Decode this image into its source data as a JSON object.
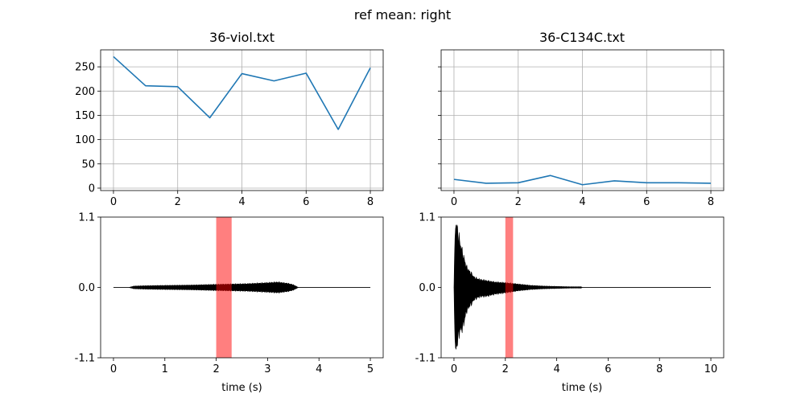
{
  "figure": {
    "suptitle": "ref mean: right"
  },
  "chart_data": [
    {
      "type": "line",
      "title": "36-viol.txt",
      "x": [
        0,
        1,
        2,
        3,
        4,
        5,
        6,
        7,
        8
      ],
      "values": [
        271,
        211,
        209,
        145,
        236,
        221,
        237,
        121,
        248
      ],
      "xlim": [
        -0.4,
        8.4
      ],
      "ylim": [
        -5,
        285
      ],
      "xticks": [
        0,
        2,
        4,
        6,
        8
      ],
      "yticks": [
        0,
        50,
        100,
        150,
        200,
        250
      ],
      "xtick_labels": [
        "0",
        "2",
        "4",
        "6",
        "8"
      ],
      "ytick_labels": [
        "0",
        "50",
        "100",
        "150",
        "200",
        "250"
      ],
      "grid": true,
      "color": "#1f77b4"
    },
    {
      "type": "line",
      "title": "36-C134C.txt",
      "x": [
        0,
        1,
        2,
        3,
        4,
        5,
        6,
        7,
        8
      ],
      "values": [
        18,
        10,
        11,
        26,
        7,
        15,
        11,
        11,
        10
      ],
      "xlim": [
        -0.4,
        8.4
      ],
      "ylim": [
        -5,
        285
      ],
      "xticks": [
        0,
        2,
        4,
        6,
        8
      ],
      "xtick_labels": [
        "0",
        "2",
        "4",
        "6",
        "8"
      ],
      "grid": true,
      "shared_y": true,
      "color": "#1f77b4"
    },
    {
      "type": "area",
      "xlabel": "time (s)",
      "xlim": [
        -0.25,
        5.25
      ],
      "ylim": [
        -1.1,
        1.1
      ],
      "xticks": [
        0,
        1,
        2,
        3,
        4,
        5
      ],
      "xtick_labels": [
        "0",
        "1",
        "2",
        "3",
        "4",
        "5"
      ],
      "yticks": [
        -1.1,
        0.0,
        1.1
      ],
      "ytick_labels": [
        "-1.1",
        "0.0",
        "1.1"
      ],
      "highlight": {
        "start": 2.0,
        "end": 2.3,
        "color": "#ff0000",
        "opacity": 0.5
      },
      "baseline": [
        0,
        5
      ],
      "envelope": {
        "t": [
          0,
          0.3,
          0.4,
          0.6,
          1.0,
          1.5,
          2.0,
          2.3,
          2.6,
          3.0,
          3.2,
          3.4,
          3.5,
          3.6,
          5.0
        ],
        "amp": [
          0.0,
          0.0,
          0.02,
          0.025,
          0.03,
          0.035,
          0.045,
          0.05,
          0.055,
          0.07,
          0.08,
          0.06,
          0.04,
          0.0,
          0.0
        ]
      },
      "color": "#000000"
    },
    {
      "type": "area",
      "xlabel": "time (s)",
      "xlim": [
        -0.5,
        10.5
      ],
      "ylim": [
        -1.1,
        1.1
      ],
      "xticks": [
        0,
        2,
        4,
        6,
        8,
        10
      ],
      "xtick_labels": [
        "0",
        "2",
        "4",
        "6",
        "8",
        "10"
      ],
      "yticks": [
        -1.1,
        0.0,
        1.1
      ],
      "ytick_labels": [
        "-1.1",
        "0.0",
        "1.1"
      ],
      "highlight": {
        "start": 2.0,
        "end": 2.3,
        "color": "#ff0000",
        "opacity": 0.5
      },
      "baseline": [
        0,
        10
      ],
      "envelope": {
        "t": [
          0,
          0.05,
          0.1,
          0.2,
          0.35,
          0.5,
          0.8,
          1.0,
          1.3,
          1.6,
          2.0,
          2.5,
          3.0,
          3.5,
          4.0,
          4.5,
          4.95,
          5.0,
          10.0
        ],
        "amp_pos": [
          0.0,
          1.0,
          0.95,
          0.75,
          0.5,
          0.3,
          0.15,
          0.12,
          0.1,
          0.08,
          0.07,
          0.05,
          0.03,
          0.02,
          0.015,
          0.01,
          0.01,
          0.0,
          0.0
        ],
        "amp_neg": [
          0.0,
          1.05,
          0.9,
          0.7,
          0.6,
          0.35,
          0.18,
          0.14,
          0.13,
          0.1,
          0.08,
          0.05,
          0.03,
          0.02,
          0.015,
          0.01,
          0.01,
          0.0,
          0.0
        ]
      },
      "color": "#000000"
    }
  ]
}
